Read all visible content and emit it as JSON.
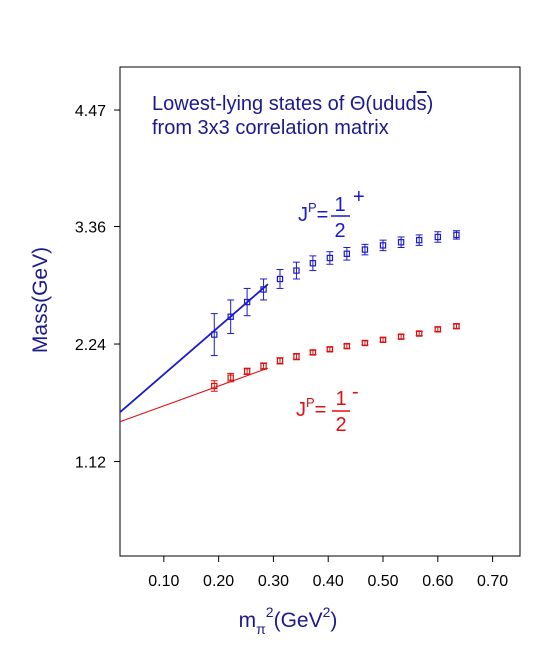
{
  "chart_data": {
    "type": "scatter",
    "title": "",
    "ylabel": "Mass(GeV)",
    "xlabel": "m_π²(GeV²)",
    "xlabel_parts": {
      "main": "m",
      "sub": "π",
      "sup": "2",
      "rest_open": "(GeV",
      "rest_sup": "2",
      "rest_close": ")"
    },
    "xlim": [
      0.02,
      0.75
    ],
    "ylim": [
      0.22,
      4.88
    ],
    "x_ticks": [
      0.1,
      0.2,
      0.3,
      0.4,
      0.5,
      0.6,
      0.7
    ],
    "x_tick_labels": [
      "0.10",
      "0.20",
      "0.30",
      "0.40",
      "0.50",
      "0.60",
      "0.70"
    ],
    "y_ticks": [
      1.12,
      2.24,
      3.36,
      4.47
    ],
    "y_tick_labels": [
      "1.12",
      "2.24",
      "3.36",
      "4.47"
    ],
    "grid": false,
    "annotation": {
      "line1": "Lowest-lying states of Θ(udud",
      "s_bar": "s",
      "line1_close": ")",
      "line2": "from 3x3 correlation matrix"
    },
    "series": [
      {
        "label_text": {
          "j": "J",
          "p_sup": "P",
          "eq": "=",
          "num": "1",
          "parity": "+",
          "den": "2"
        },
        "color": "#1a1acc",
        "points": [
          {
            "x": 0.192,
            "y": 2.33,
            "err": 0.2
          },
          {
            "x": 0.222,
            "y": 2.5,
            "err": 0.16
          },
          {
            "x": 0.252,
            "y": 2.64,
            "err": 0.13
          },
          {
            "x": 0.282,
            "y": 2.76,
            "err": 0.1
          },
          {
            "x": 0.312,
            "y": 2.86,
            "err": 0.09
          },
          {
            "x": 0.342,
            "y": 2.94,
            "err": 0.08
          },
          {
            "x": 0.372,
            "y": 3.01,
            "err": 0.07
          },
          {
            "x": 0.403,
            "y": 3.06,
            "err": 0.06
          },
          {
            "x": 0.434,
            "y": 3.1,
            "err": 0.06
          },
          {
            "x": 0.467,
            "y": 3.14,
            "err": 0.05
          },
          {
            "x": 0.5,
            "y": 3.18,
            "err": 0.05
          },
          {
            "x": 0.533,
            "y": 3.21,
            "err": 0.05
          },
          {
            "x": 0.566,
            "y": 3.23,
            "err": 0.05
          },
          {
            "x": 0.6,
            "y": 3.26,
            "err": 0.05
          },
          {
            "x": 0.634,
            "y": 3.28,
            "err": 0.04
          }
        ],
        "fit": {
          "x": [
            0.02,
            0.29
          ],
          "y": [
            1.59,
            2.81
          ]
        }
      },
      {
        "label_text": {
          "j": "J",
          "p_sup": "P",
          "eq": "=",
          "num": "1",
          "parity": "-",
          "den": "2"
        },
        "color": "#dd1111",
        "points": [
          {
            "x": 0.192,
            "y": 1.84,
            "err": 0.05
          },
          {
            "x": 0.222,
            "y": 1.92,
            "err": 0.04
          },
          {
            "x": 0.252,
            "y": 1.98,
            "err": 0.03
          },
          {
            "x": 0.282,
            "y": 2.03,
            "err": 0.03
          },
          {
            "x": 0.312,
            "y": 2.08,
            "err": 0.03
          },
          {
            "x": 0.342,
            "y": 2.12,
            "err": 0.03
          },
          {
            "x": 0.372,
            "y": 2.16,
            "err": 0.02
          },
          {
            "x": 0.403,
            "y": 2.19,
            "err": 0.02
          },
          {
            "x": 0.434,
            "y": 2.22,
            "err": 0.02
          },
          {
            "x": 0.467,
            "y": 2.25,
            "err": 0.02
          },
          {
            "x": 0.5,
            "y": 2.28,
            "err": 0.02
          },
          {
            "x": 0.533,
            "y": 2.31,
            "err": 0.02
          },
          {
            "x": 0.566,
            "y": 2.34,
            "err": 0.02
          },
          {
            "x": 0.6,
            "y": 2.38,
            "err": 0.02
          },
          {
            "x": 0.634,
            "y": 2.41,
            "err": 0.02
          }
        ],
        "fit": {
          "x": [
            0.02,
            0.29
          ],
          "y": [
            1.5,
            2.01
          ]
        }
      }
    ]
  }
}
